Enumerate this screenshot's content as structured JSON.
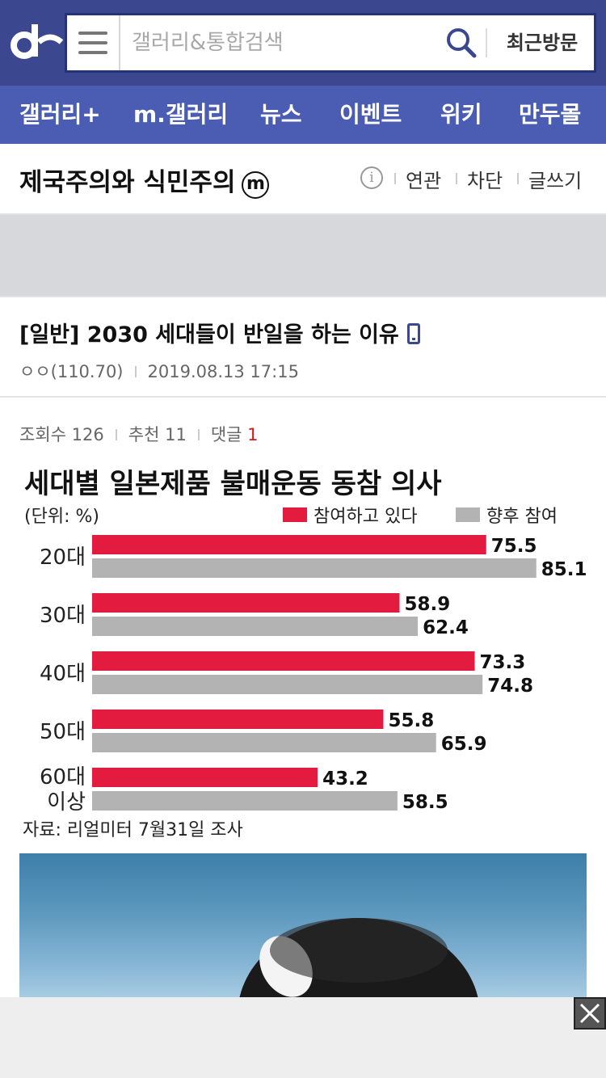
{
  "header": {
    "search_placeholder": "갤러리&통합검색",
    "recent_label": "최근방문"
  },
  "nav": {
    "items": [
      "갤러리+",
      "m.갤러리",
      "뉴스",
      "이벤트",
      "위키",
      "만두몰"
    ]
  },
  "gallery": {
    "title": "제국주의와 식민주의",
    "badge": "m",
    "links": [
      "연관",
      "차단",
      "글쓰기"
    ]
  },
  "post": {
    "title": "[일반] 2030 세대들이 반일을 하는 이유",
    "author": "ㅇㅇ(110.70)",
    "date": "2019.08.13 17:15",
    "stats": {
      "views_label": "조회수",
      "views": "126",
      "recommend_label": "추천",
      "recommend": "11",
      "comments_label": "댓글",
      "comments": "1"
    }
  },
  "chart_data": {
    "type": "bar",
    "title": "세대별 일본제품 불매운동 동참 의사",
    "unit_label": "(단위: %)",
    "categories": [
      "20대",
      "30대",
      "40대",
      "50대",
      "60대 이상"
    ],
    "series": [
      {
        "name": "참여하고 있다",
        "color": "#e31b3f",
        "values": [
          75.5,
          58.9,
          73.3,
          55.8,
          43.2
        ]
      },
      {
        "name": "향후 참여",
        "color": "#b3b3b3",
        "values": [
          85.1,
          62.4,
          74.8,
          65.9,
          58.5
        ]
      }
    ],
    "xlim": [
      0,
      100
    ],
    "source": "자료: 리얼미터 7월31일 조사",
    "legend_position": "top-right"
  },
  "colors": {
    "header_bg": "#3b4890",
    "nav_bg": "#4a5db2",
    "accent_red": "#d31a1a"
  },
  "icons": {
    "logo": "dc-logo",
    "menu": "hamburger-icon",
    "search": "search-icon",
    "info": "info-icon",
    "mobile": "mobile-icon",
    "close": "close-icon"
  }
}
